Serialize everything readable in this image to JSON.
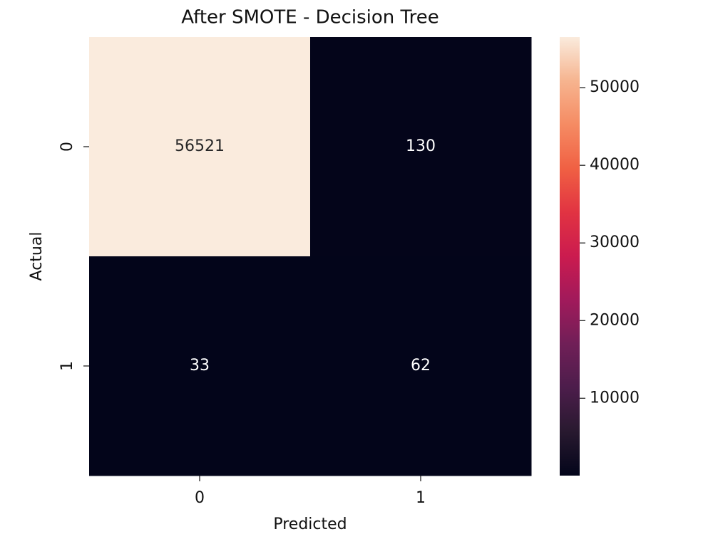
{
  "chart_data": {
    "type": "heatmap",
    "title": "After SMOTE - Decision Tree",
    "x_label": "Predicted",
    "y_label": "Actual",
    "x_categories": [
      "0",
      "1"
    ],
    "y_categories": [
      "0",
      "1"
    ],
    "values": [
      [
        56521,
        130
      ],
      [
        33,
        62
      ]
    ],
    "clim": [
      33,
      56521
    ],
    "colorbar_ticks": [
      10000,
      20000,
      30000,
      40000,
      50000
    ],
    "colormap": [
      "#03051a",
      "#28192f",
      "#4c1d4b",
      "#701f57",
      "#a11a5b",
      "#cb1b4f",
      "#e13342",
      "#f06043",
      "#f58b63",
      "#f6b48f",
      "#faebdd"
    ]
  }
}
